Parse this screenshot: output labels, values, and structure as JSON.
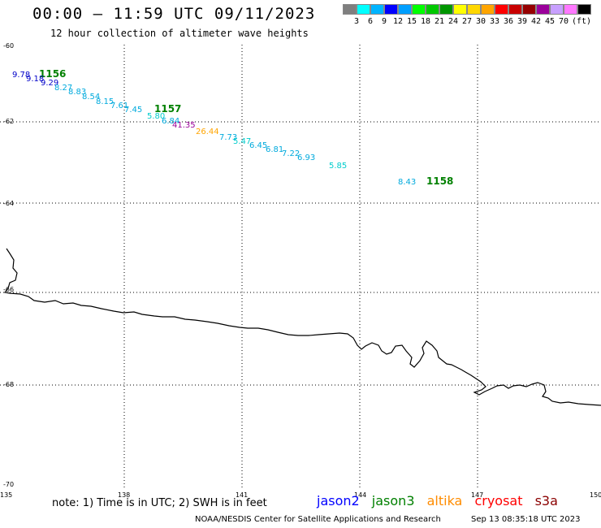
{
  "header": {
    "title": "00:00 – 11:59 UTC 09/11/2023",
    "subtitle": "12 hour collection of altimeter wave heights"
  },
  "legend": {
    "colors": [
      "#7f7f7f",
      "#00ffff",
      "#00b4ff",
      "#0000ff",
      "#009fff",
      "#00ff00",
      "#00c800",
      "#009600",
      "#ffff00",
      "#ffd700",
      "#ffa500",
      "#ff0000",
      "#c80000",
      "#960000",
      "#9b009b",
      "#c8a0ff",
      "#ff78ff",
      "#000000"
    ],
    "labels": [
      "3",
      "6",
      "9",
      "12",
      "15",
      "18",
      "21",
      "24",
      "27",
      "30",
      "33",
      "36",
      "39",
      "42",
      "45",
      "70"
    ],
    "unit": "(ft)"
  },
  "axes": {
    "lat_labels": [
      "-60",
      "-62",
      "-64",
      "-66",
      "-68",
      "-70"
    ],
    "lon_labels": [
      "135",
      "138",
      "141",
      "144",
      "147",
      "150"
    ]
  },
  "track_labels": [
    {
      "text": "1156",
      "color": "#008000"
    },
    {
      "text": "1157",
      "color": "#008000"
    },
    {
      "text": "1158",
      "color": "#008000"
    }
  ],
  "wave_heights": [
    {
      "text": "9.78",
      "color": "#0000c8"
    },
    {
      "text": "9.18",
      "color": "#0000c8"
    },
    {
      "text": "9.29",
      "color": "#0000c8"
    },
    {
      "text": "8.27",
      "color": "#00aadd"
    },
    {
      "text": "8.83",
      "color": "#00aadd"
    },
    {
      "text": "8.54",
      "color": "#00aadd"
    },
    {
      "text": "8.15",
      "color": "#00aadd"
    },
    {
      "text": "7.61",
      "color": "#00aadd"
    },
    {
      "text": "7.45",
      "color": "#00aadd"
    },
    {
      "text": "5.80",
      "color": "#00cccc"
    },
    {
      "text": "6.84",
      "color": "#00aadd"
    },
    {
      "text": "41.35",
      "color": "#990099"
    },
    {
      "text": "26.44",
      "color": "#ffa500"
    },
    {
      "text": "7.73",
      "color": "#00aadd"
    },
    {
      "text": "5.47",
      "color": "#00cccc"
    },
    {
      "text": "6.45",
      "color": "#00aadd"
    },
    {
      "text": "6.81",
      "color": "#00aadd"
    },
    {
      "text": "7.22",
      "color": "#00aadd"
    },
    {
      "text": "6.93",
      "color": "#00aadd"
    },
    {
      "text": "5.85",
      "color": "#00cccc"
    },
    {
      "text": "8.43",
      "color": "#00aadd"
    }
  ],
  "footer": {
    "note": "note: 1) Time is in UTC; 2) SWH is in feet",
    "satellites": [
      {
        "name": "jason2",
        "color": "#0000ff"
      },
      {
        "name": "jason3",
        "color": "#008000"
      },
      {
        "name": "altika",
        "color": "#ff8c00"
      },
      {
        "name": "cryosat",
        "color": "#ff0000"
      },
      {
        "name": "s3a",
        "color": "#8b0000"
      }
    ],
    "credit": "NOAA/NESDIS Center for Satellite Applications and Research",
    "timestamp": "Sep 13 08:35:18 UTC 2023"
  }
}
